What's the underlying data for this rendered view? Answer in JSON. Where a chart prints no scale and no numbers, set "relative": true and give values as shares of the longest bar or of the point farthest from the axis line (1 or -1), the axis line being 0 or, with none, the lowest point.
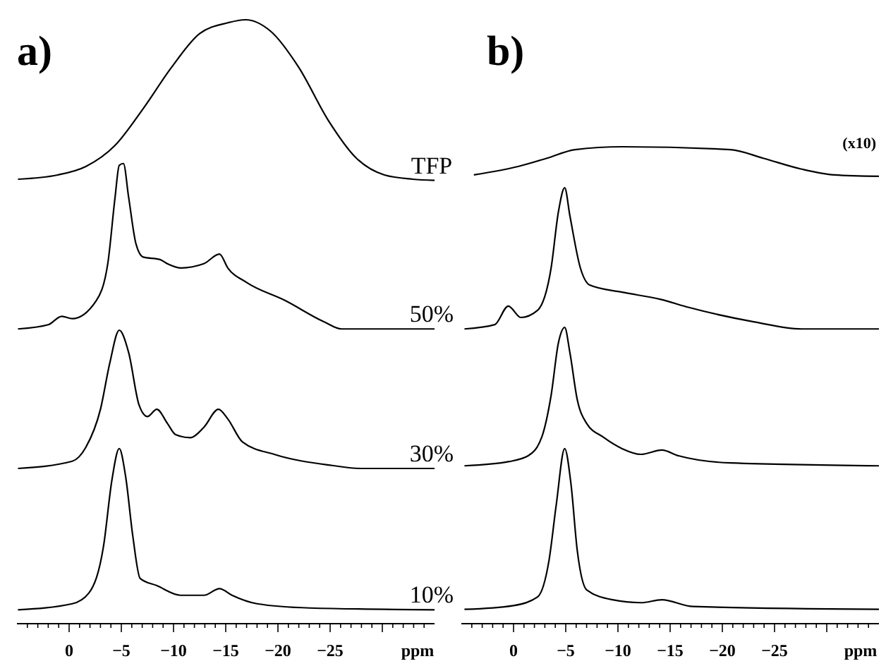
{
  "chart_data": [
    {
      "type": "line",
      "title": "a)",
      "xlabel": "ppm",
      "relative": true,
      "xlim": [
        5,
        -35
      ],
      "xticks": [
        {
          "value": 4,
          "label": null
        },
        {
          "value": 3,
          "label": null
        },
        {
          "value": 2,
          "label": null
        },
        {
          "value": 1,
          "label": null
        },
        0,
        {
          "value": -1,
          "label": null
        },
        {
          "value": -2,
          "label": null
        },
        {
          "value": -3,
          "label": null
        },
        {
          "value": -4,
          "label": null
        },
        -5,
        {
          "value": -6,
          "label": null
        },
        {
          "value": -7,
          "label": null
        },
        {
          "value": -8,
          "label": null
        },
        {
          "value": -9,
          "label": null
        },
        -10,
        {
          "value": -11,
          "label": null
        },
        {
          "value": -12,
          "label": null
        },
        {
          "value": -13,
          "label": null
        },
        {
          "value": -14,
          "label": null
        },
        -15,
        {
          "value": -16,
          "label": null
        },
        {
          "value": -17,
          "label": null
        },
        {
          "value": -18,
          "label": null
        },
        {
          "value": -19,
          "label": null
        },
        -20,
        {
          "value": -21,
          "label": null
        },
        {
          "value": -22,
          "label": null
        },
        {
          "value": -23,
          "label": null
        },
        {
          "value": -24,
          "label": null
        },
        -25,
        {
          "value": -26,
          "label": null
        },
        {
          "value": -27,
          "label": null
        },
        {
          "value": -28,
          "label": null
        },
        {
          "value": -29,
          "label": null
        },
        {
          "value": -30,
          "label": null
        },
        {
          "value": -31,
          "label": null
        },
        {
          "value": -32,
          "label": null
        },
        {
          "value": -33,
          "label": null
        },
        {
          "value": -34,
          "label": null
        }
      ],
      "series": [
        {
          "name": "TFP",
          "color": "#000000",
          "x": [
            4.9,
            1.1,
            -1.6,
            -4.4,
            -7.1,
            -9.8,
            -12.5,
            -15.2,
            -16.9,
            -19.3,
            -22.0,
            -24.8,
            -27.5,
            -30.2,
            -32.9,
            -35
          ],
          "values": [
            0.736,
            0.743,
            0.757,
            0.792,
            0.853,
            0.921,
            0.977,
            0.995,
            1.0,
            0.981,
            0.921,
            0.834,
            0.771,
            0.743,
            0.736,
            0.734
          ]
        },
        {
          "name": "50%",
          "color": "#000000",
          "x": [
            4.9,
            2.0,
            0.7,
            -0.3,
            -2.6,
            -3.7,
            -4.4,
            -4.8,
            -5.2,
            -5.7,
            -6.4,
            -7.1,
            -8.7,
            -9.4,
            -10.7,
            -12.9,
            -14.4,
            -15.2,
            -17.0,
            -20.7,
            -24.4,
            -26.1,
            -35
          ],
          "values": [
            0.488,
            0.495,
            0.509,
            0.505,
            0.535,
            0.596,
            0.706,
            0.759,
            0.762,
            0.706,
            0.629,
            0.607,
            0.603,
            0.596,
            0.589,
            0.596,
            0.612,
            0.589,
            0.565,
            0.535,
            0.5,
            0.488,
            0.488
          ]
        },
        {
          "name": "30%",
          "color": "#000000",
          "x": [
            4.9,
            -0.3,
            -1.6,
            -3.0,
            -3.9,
            -4.8,
            -5.7,
            -6.7,
            -7.5,
            -8.4,
            -9.4,
            -10.2,
            -11.6,
            -12.9,
            -14.3,
            -15.2,
            -16.6,
            -19.7,
            -25.2,
            -27.9,
            -35
          ],
          "values": [
            0.257,
            0.269,
            0.292,
            0.355,
            0.432,
            0.486,
            0.449,
            0.362,
            0.343,
            0.355,
            0.332,
            0.313,
            0.308,
            0.325,
            0.355,
            0.339,
            0.301,
            0.28,
            0.262,
            0.257,
            0.257
          ]
        },
        {
          "name": "10%",
          "color": "#000000",
          "x": [
            4.9,
            -0.3,
            -1.9,
            -3.3,
            -4.1,
            -4.8,
            -5.4,
            -6.1,
            -6.8,
            -8.4,
            -10.7,
            -12.9,
            -14.4,
            -15.6,
            -18.0,
            -23.0,
            -35
          ],
          "values": [
            0.023,
            0.033,
            0.051,
            0.129,
            0.238,
            0.29,
            0.245,
            0.145,
            0.075,
            0.063,
            0.047,
            0.047,
            0.058,
            0.047,
            0.033,
            0.026,
            0.023
          ]
        }
      ]
    },
    {
      "type": "line",
      "title": "b)",
      "xlabel": "ppm",
      "relative": true,
      "xlim": [
        5,
        -35
      ],
      "annotations": [
        "(x10)"
      ],
      "xticks": [
        {
          "value": 4,
          "label": null
        },
        {
          "value": 3,
          "label": null
        },
        {
          "value": 2,
          "label": null
        },
        {
          "value": 1,
          "label": null
        },
        0,
        {
          "value": -1,
          "label": null
        },
        {
          "value": -2,
          "label": null
        },
        {
          "value": -3,
          "label": null
        },
        {
          "value": -4,
          "label": null
        },
        -5,
        {
          "value": -6,
          "label": null
        },
        {
          "value": -7,
          "label": null
        },
        {
          "value": -8,
          "label": null
        },
        {
          "value": -9,
          "label": null
        },
        -10,
        {
          "value": -11,
          "label": null
        },
        {
          "value": -12,
          "label": null
        },
        {
          "value": -13,
          "label": null
        },
        {
          "value": -14,
          "label": null
        },
        -15,
        {
          "value": -16,
          "label": null
        },
        {
          "value": -17,
          "label": null
        },
        {
          "value": -18,
          "label": null
        },
        {
          "value": -19,
          "label": null
        },
        -20,
        {
          "value": -21,
          "label": null
        },
        {
          "value": -22,
          "label": null
        },
        {
          "value": -23,
          "label": null
        },
        {
          "value": -24,
          "label": null
        },
        -25,
        {
          "value": -26,
          "label": null
        },
        {
          "value": -27,
          "label": null
        },
        {
          "value": -28,
          "label": null
        },
        {
          "value": -29,
          "label": null
        },
        {
          "value": -30,
          "label": null
        },
        {
          "value": -31,
          "label": null
        },
        {
          "value": -32,
          "label": null
        },
        {
          "value": -33,
          "label": null
        },
        {
          "value": -34,
          "label": null
        }
      ],
      "series": [
        {
          "color": "#000000",
          "x": [
            3.8,
            -0.5,
            -3.2,
            -5.9,
            -10.4,
            -20.8,
            -23.9,
            -27.6,
            -30.7,
            -35
          ],
          "values": [
            0.941,
            0.959,
            0.976,
            0.994,
            1.0,
            0.994,
            0.976,
            0.953,
            0.941,
            0.938
          ]
        },
        {
          "color": "#000000",
          "x": [
            4.7,
            1.8,
            0.5,
            -0.7,
            -2.3,
            -3.6,
            -4.3,
            -4.9,
            -5.4,
            -6.4,
            -7.3,
            -10.4,
            -14.1,
            -16.8,
            -23.0,
            -27.6,
            -35
          ],
          "values": [
            0.618,
            0.627,
            0.666,
            0.642,
            0.657,
            0.746,
            0.864,
            0.914,
            0.855,
            0.746,
            0.71,
            0.695,
            0.68,
            0.663,
            0.633,
            0.618,
            0.618
          ]
        },
        {
          "color": "#000000",
          "x": [
            4.7,
            0.4,
            -1.4,
            -2.7,
            -3.6,
            -4.3,
            -4.9,
            -5.4,
            -6.1,
            -7.0,
            -8.6,
            -10.4,
            -12.2,
            -14.2,
            -15.8,
            -20.8,
            -35
          ],
          "values": [
            0.331,
            0.34,
            0.352,
            0.391,
            0.479,
            0.589,
            0.621,
            0.568,
            0.47,
            0.42,
            0.391,
            0.367,
            0.355,
            0.364,
            0.352,
            0.337,
            0.331
          ]
        },
        {
          "color": "#000000",
          "x": [
            4.7,
            0,
            -2.3,
            -3.4,
            -4.1,
            -4.9,
            -5.5,
            -6.1,
            -7.0,
            -9.5,
            -12.2,
            -14.2,
            -17.2,
            -35
          ],
          "values": [
            0.03,
            0.038,
            0.056,
            0.133,
            0.251,
            0.367,
            0.293,
            0.154,
            0.071,
            0.05,
            0.044,
            0.05,
            0.036,
            0.03
          ]
        }
      ]
    }
  ]
}
